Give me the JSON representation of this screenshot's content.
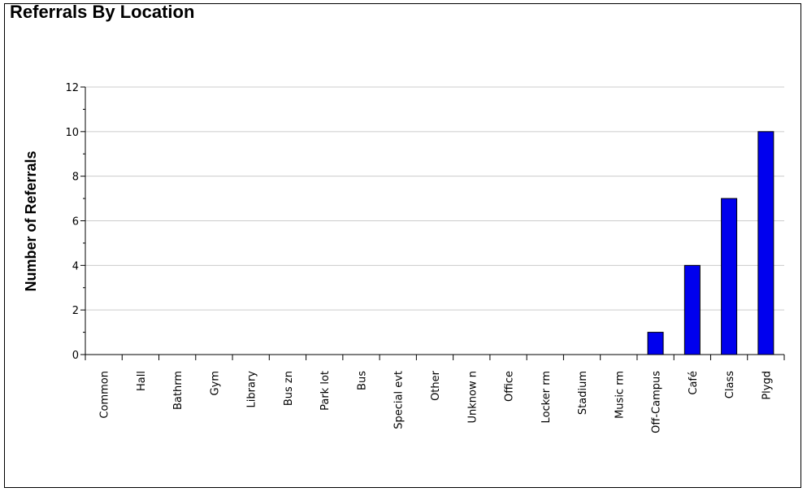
{
  "chart_data": {
    "type": "bar",
    "title": "Referrals By Location",
    "xlabel": "",
    "ylabel": "Number of Referrals",
    "ylim": [
      0,
      12
    ],
    "yticks": [
      0,
      2,
      4,
      6,
      8,
      10,
      12
    ],
    "grid": true,
    "categories": [
      "Common",
      "Hall",
      "Bathrm",
      "Gym",
      "Library",
      "Bus zn",
      "Park lot",
      "Bus",
      "Special evt",
      "Other",
      "Unknow n",
      "Office",
      "Locker rm",
      "Stadium",
      "Music rm",
      "Off-Campus",
      "Café",
      "Class",
      "Plygd"
    ],
    "values": [
      0,
      0,
      0,
      0,
      0,
      0,
      0,
      0,
      0,
      0,
      0,
      0,
      0,
      0,
      0,
      1,
      4,
      7,
      10
    ],
    "bar_color": "#0000ee"
  }
}
